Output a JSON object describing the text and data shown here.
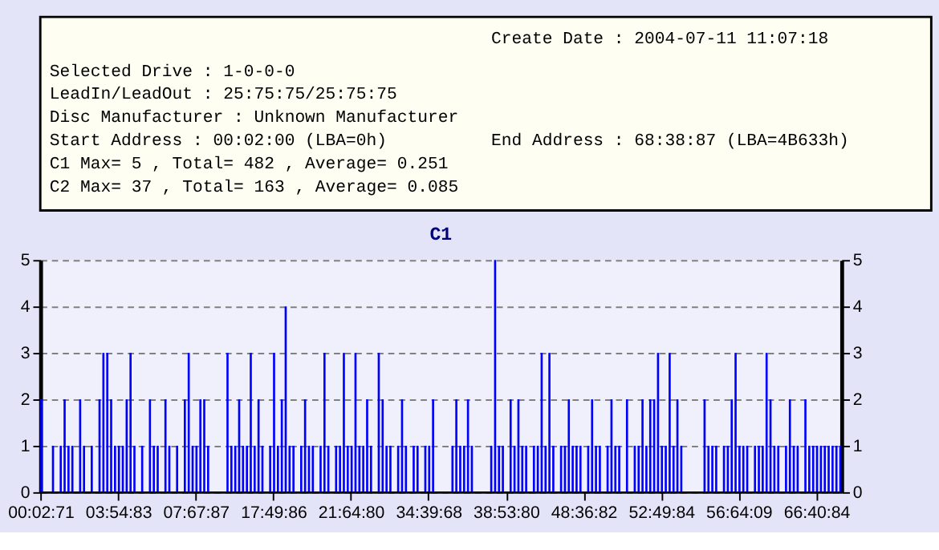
{
  "chart_data": {
    "type": "bar",
    "title": "C1",
    "annotations": [
      "Create Date : 2004-07-11 11:07:18",
      "Selected Drive : 1-0-0-0",
      "LeadIn/LeadOut : 25:75:75/25:75:75",
      "Disc Manufacturer : Unknown Manufacturer",
      "Start Address : 00:02:00 (LBA=0h)",
      "End Address : 68:38:87 (LBA=4B633h)",
      "C1 Max= 5 , Total= 482 , Average= 0.251",
      "C2 Max= 37 , Total= 163 , Average= 0.085"
    ],
    "categories": [
      "00:02:71",
      null,
      null,
      null,
      null,
      null,
      null,
      null,
      null,
      null,
      null,
      null,
      null,
      null,
      null,
      null,
      null,
      null,
      null,
      null,
      "03:54:83",
      null,
      null,
      null,
      null,
      null,
      null,
      null,
      null,
      null,
      null,
      null,
      null,
      null,
      null,
      null,
      null,
      null,
      null,
      null,
      "07:67:87",
      null,
      null,
      null,
      null,
      null,
      null,
      null,
      null,
      null,
      null,
      null,
      null,
      null,
      null,
      null,
      null,
      null,
      null,
      null,
      "17:49:86",
      null,
      null,
      null,
      null,
      null,
      null,
      null,
      null,
      null,
      null,
      null,
      null,
      null,
      null,
      null,
      null,
      null,
      null,
      null,
      "21:64:80",
      null,
      null,
      null,
      null,
      null,
      null,
      null,
      null,
      null,
      null,
      null,
      null,
      null,
      null,
      null,
      null,
      null,
      null,
      null,
      "34:39:68",
      null,
      null,
      null,
      null,
      null,
      null,
      null,
      null,
      null,
      null,
      null,
      null,
      null,
      null,
      null,
      null,
      null,
      null,
      null,
      "38:53:80",
      null,
      null,
      null,
      null,
      null,
      null,
      null,
      null,
      null,
      null,
      null,
      null,
      null,
      null,
      null,
      null,
      null,
      null,
      null,
      "48:36:82",
      null,
      null,
      null,
      null,
      null,
      null,
      null,
      null,
      null,
      null,
      null,
      null,
      null,
      null,
      null,
      null,
      null,
      null,
      null,
      "52:49:84",
      null,
      null,
      null,
      null,
      null,
      null,
      null,
      null,
      null,
      null,
      null,
      null,
      null,
      null,
      null,
      null,
      null,
      null,
      null,
      "56:64:09",
      null,
      null,
      null,
      null,
      null,
      null,
      null,
      null,
      null,
      null,
      null,
      null,
      null,
      null,
      null,
      null,
      null,
      null,
      null,
      "66:40:84",
      null,
      null,
      null,
      null,
      null,
      null
    ],
    "values": [
      2,
      0,
      0,
      1,
      0,
      1,
      2,
      1,
      1,
      0,
      2,
      1,
      0,
      1,
      0,
      2,
      3,
      3,
      2,
      1,
      1,
      1,
      2,
      3,
      1,
      0,
      1,
      0,
      2,
      1,
      1,
      0,
      2,
      1,
      0,
      1,
      0,
      2,
      3,
      1,
      1,
      2,
      2,
      1,
      0,
      0,
      0,
      0,
      3,
      1,
      1,
      2,
      1,
      1,
      3,
      1,
      2,
      1,
      0,
      1,
      3,
      1,
      2,
      4,
      1,
      1,
      0,
      1,
      2,
      1,
      1,
      0,
      1,
      3,
      1,
      0,
      1,
      1,
      3,
      1,
      1,
      3,
      1,
      1,
      2,
      1,
      0,
      3,
      2,
      1,
      1,
      0,
      1,
      2,
      1,
      0,
      1,
      1,
      0,
      1,
      1,
      2,
      0,
      0,
      0,
      0,
      1,
      2,
      1,
      1,
      2,
      1,
      0,
      0,
      0,
      0,
      1,
      5,
      1,
      1,
      0,
      2,
      1,
      2,
      1,
      1,
      0,
      1,
      1,
      3,
      1,
      3,
      1,
      0,
      1,
      1,
      2,
      1,
      1,
      1,
      0,
      1,
      2,
      1,
      1,
      0,
      1,
      2,
      1,
      1,
      0,
      2,
      0,
      1,
      1,
      2,
      1,
      2,
      2,
      3,
      1,
      1,
      3,
      1,
      2,
      1,
      0,
      0,
      0,
      0,
      0,
      2,
      1,
      1,
      1,
      0,
      1,
      1,
      2,
      3,
      1,
      1,
      1,
      0,
      1,
      1,
      1,
      3,
      2,
      1,
      1,
      0,
      1,
      2,
      1,
      1,
      0,
      2,
      1,
      1,
      1,
      1,
      1,
      1,
      1,
      1,
      1
    ],
    "color": "#0000ff",
    "ylim": [
      0,
      5
    ],
    "yticks": [
      0,
      1,
      2,
      3,
      4,
      5
    ],
    "y2lim": [
      0,
      5
    ],
    "y2ticks": [
      0,
      1,
      2,
      3,
      4,
      5
    ],
    "grid": "y"
  }
}
